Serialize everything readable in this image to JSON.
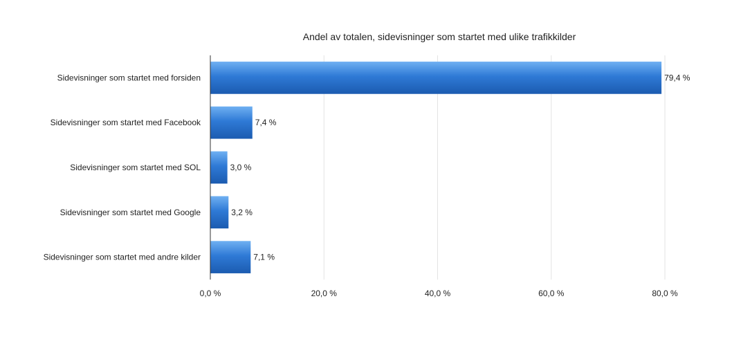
{
  "chart_data": {
    "type": "bar",
    "orientation": "horizontal",
    "title": "Andel av totalen, sidevisninger som startet med ulike trafikkilder",
    "categories": [
      "Sidevisninger som startet med forsiden",
      "Sidevisninger som startet med Facebook",
      "Sidevisninger som startet med SOL",
      "Sidevisninger som startet med Google",
      "Sidevisninger som startet med andre kilder"
    ],
    "values": [
      79.4,
      7.4,
      3.0,
      3.2,
      7.1
    ],
    "value_labels": [
      "79,4 %",
      "7,4 %",
      "3,0 %",
      "3,2 %",
      "7,1 %"
    ],
    "xlim": [
      0,
      80
    ],
    "ticks": [
      0,
      20,
      40,
      60,
      80
    ],
    "tick_labels": [
      "0,0 %",
      "20,0 %",
      "40,0 %",
      "60,0 %",
      "80,0 %"
    ],
    "xlabel": "",
    "ylabel": "",
    "grid": true,
    "legend": "none",
    "bar_color": "#2f7ad6"
  }
}
